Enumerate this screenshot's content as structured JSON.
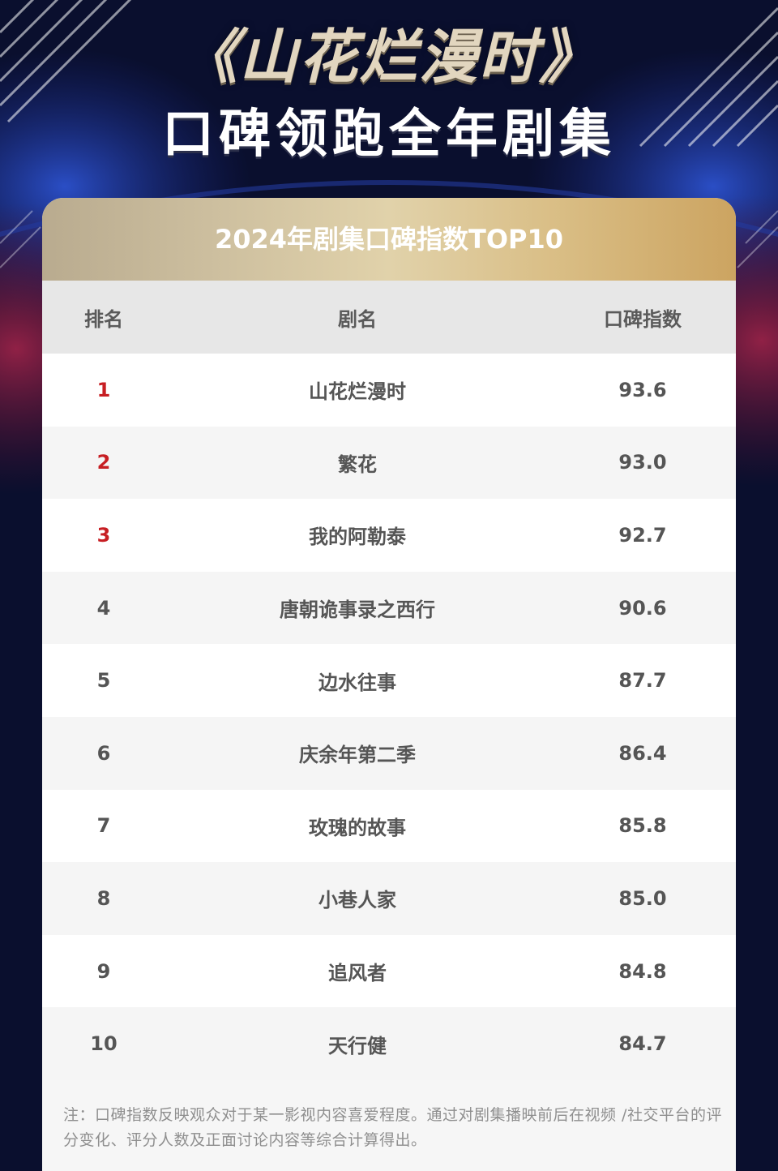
{
  "headline": {
    "line1": "《山花烂漫时》",
    "line2": "口碑领跑全年剧集"
  },
  "table": {
    "title": "2024年剧集口碑指数TOP10",
    "columns": [
      "排名",
      "剧名",
      "口碑指数"
    ],
    "rows": [
      {
        "rank": "1",
        "name": "山花烂漫时",
        "score": "93.6"
      },
      {
        "rank": "2",
        "name": "繁花",
        "score": "93.0"
      },
      {
        "rank": "3",
        "name": "我的阿勒泰",
        "score": "92.7"
      },
      {
        "rank": "4",
        "name": "唐朝诡事录之西行",
        "score": "90.6"
      },
      {
        "rank": "5",
        "name": "边水往事",
        "score": "87.7"
      },
      {
        "rank": "6",
        "name": "庆余年第二季",
        "score": "86.4"
      },
      {
        "rank": "7",
        "name": "玫瑰的故事",
        "score": "85.8"
      },
      {
        "rank": "8",
        "name": "小巷人家",
        "score": "85.0"
      },
      {
        "rank": "9",
        "name": "追风者",
        "score": "84.8"
      },
      {
        "rank": "10",
        "name": "天行健",
        "score": "84.7"
      }
    ]
  },
  "note": "注：口碑指数反映观众对于某一影视内容喜爱程度。通过对剧集播映前后在视频 /社交平台的评分变化、评分人数及正面讨论内容等综合计算得出。",
  "colors": {
    "background": "#0a0f2e",
    "gold_title": "#e2d6bf",
    "top3_rank": "#c71e23",
    "header_gold_start": "#b9ab8f",
    "header_gold_end": "#cca461",
    "accent_blue": "#1f3fa8",
    "accent_red": "#8a1c3c"
  }
}
